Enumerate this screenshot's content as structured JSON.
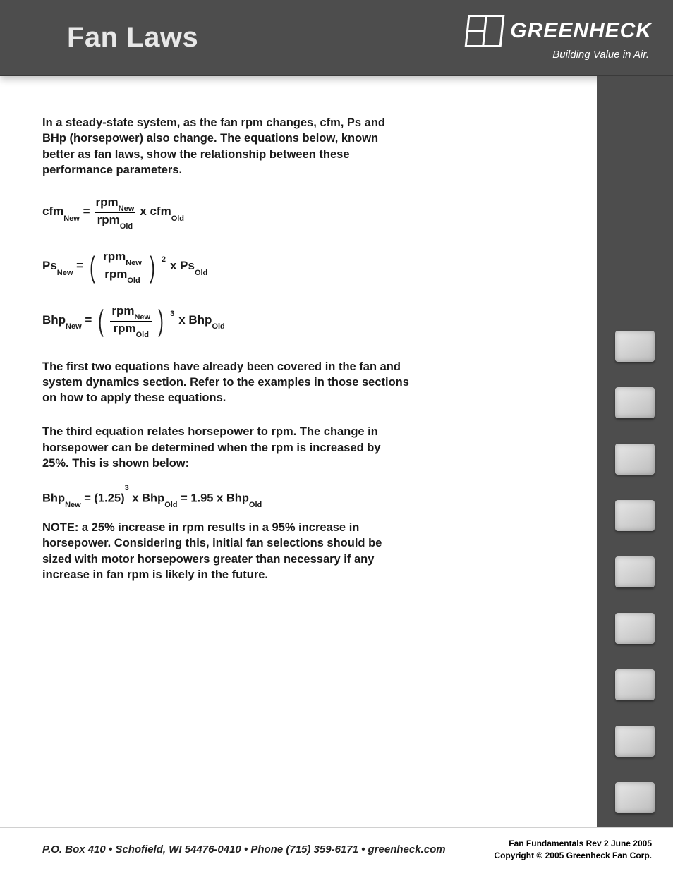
{
  "header": {
    "title": "Fan Laws",
    "brand_name": "GREENHECK",
    "brand_tagline": "Building Value in Air."
  },
  "body": {
    "intro": "In a steady-state system, as the fan rpm changes, cfm, Ps and BHp (horsepower) also change. The equations below, known better as fan laws, show the relationship between these performance parameters.",
    "eq1": {
      "lhs_base": "cfm",
      "lhs_sub": "New",
      "num_base": "rpm",
      "num_sub": "New",
      "den_base": "rpm",
      "den_sub": "Old",
      "rhs_base": "cfm",
      "rhs_sub": "Old"
    },
    "eq2": {
      "lhs_base": "Ps",
      "lhs_sub": "New",
      "num_base": "rpm",
      "num_sub": "New",
      "den_base": "rpm",
      "den_sub": "Old",
      "power": "2",
      "rhs_base": "Ps",
      "rhs_sub": "Old"
    },
    "eq3": {
      "lhs_base": "Bhp",
      "lhs_sub": "New",
      "num_base": "rpm",
      "num_sub": "New",
      "den_base": "rpm",
      "den_sub": "Old",
      "power": "3",
      "rhs_base": "Bhp",
      "rhs_sub": "Old"
    },
    "para2": "The first two equations have already been covered in the fan and system dynamics section. Refer to the examples in those sections on how to apply these equations.",
    "para3": "The third equation relates horsepower to rpm. The change in horsepower can be determined when the rpm is increased by 25%. This is shown below:",
    "eq4": {
      "lhs_base": "Bhp",
      "lhs_sub": "New",
      "factor_base": "(1.25)",
      "factor_pow": "3",
      "mid_base": "Bhp",
      "mid_sub": "Old",
      "result": "1.95",
      "rhs_base": "Bhp",
      "rhs_sub": "Old"
    },
    "note": "NOTE: a 25% increase in rpm results in a 95% increase in horsepower. Considering this, initial fan selections should be sized with motor horsepowers greater than necessary if any increase in fan rpm is likely in the future."
  },
  "sidebar": {
    "thumbs": [
      "centrifugal-fan",
      "axial-fan",
      "roof-exhaust",
      "wall-fan",
      "energy-recovery",
      "gravity-vent",
      "kitchen-hood",
      "make-up-air",
      "louver-damper"
    ]
  },
  "footer": {
    "contact": "P.O. Box 410 • Schofield, WI 54476-0410 • Phone (715) 359-6171 • greenheck.com",
    "rev": "Fan Fundamentals Rev 2 June 2005",
    "copyright": "Copyright © 2005 Greenheck Fan Corp."
  },
  "colors": {
    "header_bg": "#4d4d4d",
    "text": "#1a1a1a",
    "page_bg": "#ffffff"
  }
}
